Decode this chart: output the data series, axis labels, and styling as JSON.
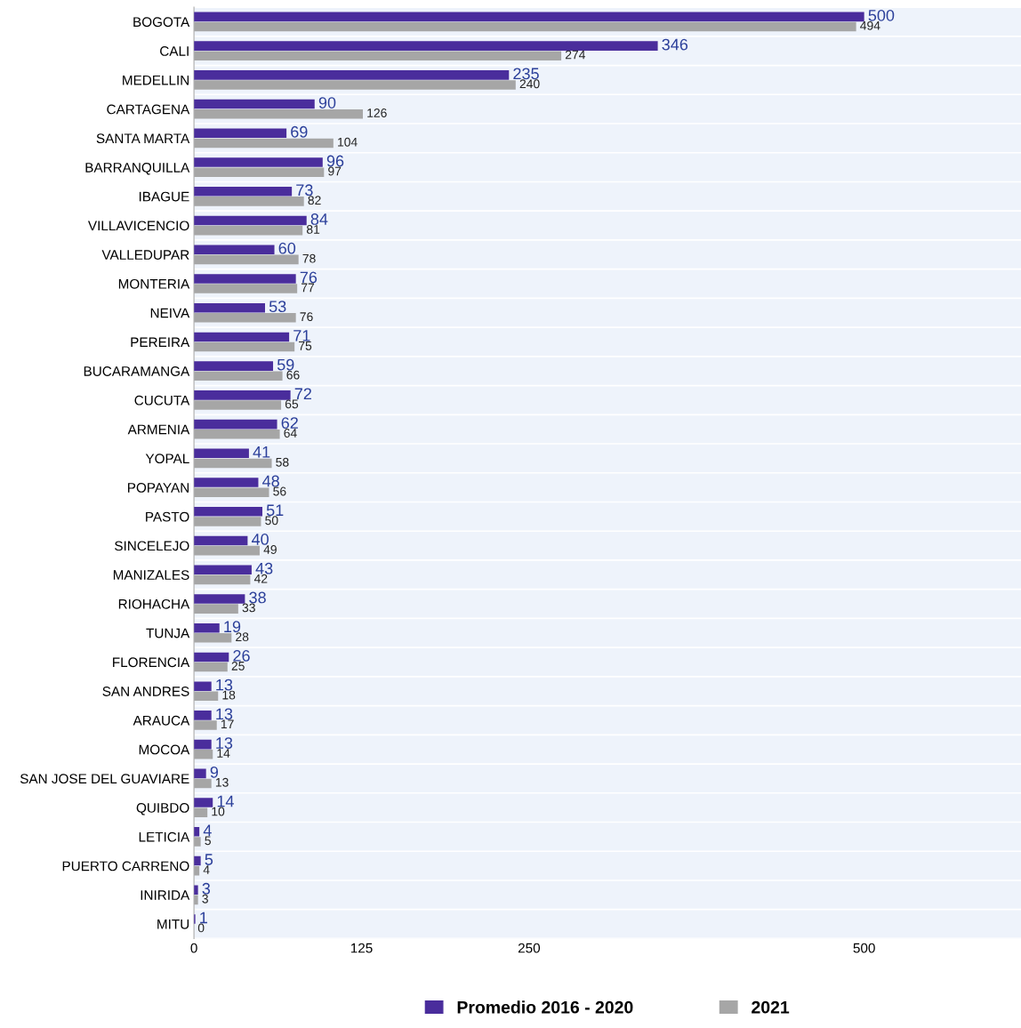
{
  "chart_data": {
    "type": "bar",
    "orientation": "horizontal",
    "categories": [
      "BOGOTA",
      "CALI",
      "MEDELLIN",
      "CARTAGENA",
      "SANTA MARTA",
      "BARRANQUILLA",
      "IBAGUE",
      "VILLAVICENCIO",
      "VALLEDUPAR",
      "MONTERIA",
      "NEIVA",
      "PEREIRA",
      "BUCARAMANGA",
      "CUCUTA",
      "ARMENIA",
      "YOPAL",
      "POPAYAN",
      "PASTO",
      "SINCELEJO",
      "MANIZALES",
      "RIOHACHA",
      "TUNJA",
      "FLORENCIA",
      "SAN ANDRES",
      "ARAUCA",
      "MOCOA",
      "SAN JOSE DEL GUAVIARE",
      "QUIBDO",
      "LETICIA",
      "PUERTO CARRENO",
      "INIRIDA",
      "MITU"
    ],
    "series": [
      {
        "name": "Promedio 2016 - 2020",
        "color": "#4a2d9c",
        "values": [
          500,
          346,
          235,
          90,
          69,
          96,
          73,
          84,
          60,
          76,
          53,
          71,
          59,
          72,
          62,
          41,
          48,
          51,
          40,
          43,
          38,
          19,
          26,
          13,
          13,
          13,
          9,
          14,
          4,
          5,
          3,
          1
        ]
      },
      {
        "name": "2021",
        "color": "#a6a6a6",
        "values": [
          494,
          274,
          240,
          126,
          104,
          97,
          82,
          81,
          78,
          77,
          76,
          75,
          66,
          65,
          64,
          58,
          56,
          50,
          49,
          42,
          33,
          28,
          25,
          18,
          17,
          14,
          13,
          10,
          5,
          4,
          3,
          0
        ]
      }
    ],
    "xlim": [
      0,
      617
    ],
    "xticks": [
      0,
      125,
      250,
      500
    ],
    "data_labels": true,
    "grid": false,
    "legend": "bottom"
  }
}
